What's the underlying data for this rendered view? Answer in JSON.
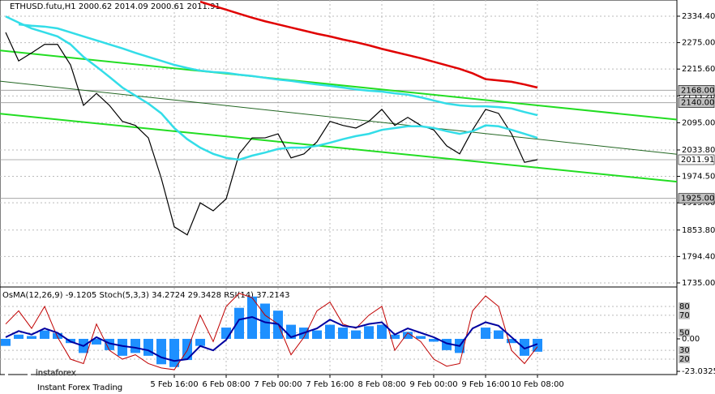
{
  "chart_data": {
    "type": "line",
    "title": "ETHUSD.futu,H1  2000.62 2014.09 2000.61 2011.91",
    "categories": [
      null,
      null,
      null,
      null,
      null,
      null,
      null,
      null,
      null,
      null,
      null,
      null,
      null,
      "5 Feb 16:00",
      null,
      null,
      null,
      "6 Feb 08:00",
      null,
      null,
      null,
      "7 Feb 00:00",
      null,
      null,
      null,
      "7 Feb 16:00",
      null,
      null,
      null,
      "8 Feb 08:00",
      null,
      null,
      null,
      "9 Feb 00:00",
      null,
      null,
      null,
      "9 Feb 16:00",
      null,
      null,
      null,
      "10 Feb 08:00"
    ],
    "ylim": [
      1729.5,
      2370.8
    ],
    "yticks": [
      {
        "value": 2334.4,
        "label": "2334.40"
      },
      {
        "value": 2275,
        "label": "2275.00"
      },
      {
        "value": 2215.6,
        "label": "2215.60"
      },
      {
        "value": 2155.2,
        "label": "2155.20"
      },
      {
        "value": 2095,
        "label": "2095.00"
      },
      {
        "value": 2033.8,
        "label": "2033.80"
      },
      {
        "value": 1974.5,
        "label": "1974.50"
      },
      {
        "value": 1915,
        "label": "1915.00"
      },
      {
        "value": 1853.8,
        "label": "1853.80"
      },
      {
        "value": 1794.4,
        "label": "1794.40"
      },
      {
        "value": 1735,
        "label": "1735.00"
      }
    ],
    "grid": true,
    "series": [
      {
        "color": "#000000",
        "values": [
          2298,
          2234,
          2252,
          2271,
          2271,
          2225,
          2134,
          2161,
          2134,
          2098,
          2089,
          2061,
          1970,
          1861,
          1843,
          1915,
          1897,
          1924,
          2025,
          2061,
          2061,
          2070,
          2016,
          2025,
          2052,
          2098,
          2089,
          2083,
          2098,
          2125,
          2089,
          2107,
          2089,
          2079,
          2043,
          2025,
          2079,
          2125,
          2116,
          2070,
          2006,
          2011.91
        ]
      },
      {
        "color": "#e00000",
        "values": [
          null,
          null,
          null,
          null,
          null,
          null,
          null,
          null,
          null,
          null,
          null,
          null,
          null,
          null,
          null,
          2367,
          2358,
          2349,
          2340,
          2331,
          2323,
          2316,
          2309,
          2302,
          2295,
          2289,
          2282,
          2276,
          2269,
          2261,
          2254,
          2247,
          2240,
          2232,
          2224,
          2216,
          2206,
          2193,
          2190,
          2187,
          2181,
          2174
        ]
      },
      {
        "color": "#33dde8",
        "values": [
          null,
          2316,
          2313,
          2311,
          2307,
          2298,
          2289,
          2280,
          2271,
          2262,
          2252,
          2243,
          2234,
          2225,
          2218,
          2212,
          2209,
          2207,
          2203,
          2200,
          2196,
          2192,
          2189,
          2185,
          2181,
          2178,
          2174,
          2170,
          2167,
          2165,
          2161,
          2158,
          2152,
          2145,
          2138,
          2134,
          2132,
          2132,
          2130,
          2127,
          2119,
          2112
        ]
      },
      {
        "color": "#33dde8",
        "values": [
          2334,
          2320,
          2307,
          2298,
          2289,
          2271,
          2243,
          2221,
          2198,
          2174,
          2156,
          2138,
          2116,
          2083,
          2058,
          2039,
          2025,
          2016,
          2012,
          2021,
          2028,
          2036,
          2039,
          2039,
          2043,
          2050,
          2058,
          2065,
          2070,
          2079,
          2083,
          2087,
          2087,
          2083,
          2076,
          2070,
          2076,
          2089,
          2087,
          2079,
          2070,
          2061
        ]
      }
    ],
    "trendlines": [
      {
        "color": "#22dd22",
        "values": [
          2256,
          2134
        ]
      },
      {
        "color": "#226622",
        "values": [
          2187,
          2058
        ]
      },
      {
        "color": "#22dd22",
        "values": [
          2114,
          1994
        ]
      }
    ],
    "levels": [
      {
        "value": 2168,
        "label": "2168.00",
        "color": "#c0c0c0"
      },
      {
        "value": 2140,
        "label": "2140.00",
        "color": "#c0c0c0"
      },
      {
        "value": 2011.91,
        "label": "2011.91",
        "color": "#ffffff"
      },
      {
        "value": 1925,
        "label": "1925.00",
        "color": "#c0c0c0"
      }
    ],
    "indicator": {
      "title": "OsMA(12,26,9) -9.1205  Stoch(5,3,3) 34.2724 29.3428  RSI(14) 37.2143",
      "ylim": [
        2.5,
        101.2
      ],
      "yticks": [
        80,
        70,
        50,
        30,
        20
      ],
      "y2lim": [
        -25.3,
        36.2
      ],
      "y2ticks": [
        {
          "value": 0,
          "label": "0.00"
        },
        -23.0325
      ],
      "series": [
        {
          "type": "histogram",
          "axis": "y2",
          "color": "#1e90ff",
          "values": [
            -5,
            3,
            2,
            6,
            4,
            -3,
            -10,
            -4,
            -8,
            -12,
            -10,
            -12,
            -18,
            -20,
            -15,
            -5,
            0,
            8,
            22,
            30,
            25,
            20,
            10,
            8,
            6,
            10,
            8,
            6,
            9,
            10,
            3,
            5,
            2,
            -2,
            -8,
            -10,
            0,
            8,
            6,
            -3,
            -12,
            -9.1205
          ]
        },
        {
          "type": "line",
          "color": "#c00000",
          "values": [
            60,
            75,
            55,
            80,
            45,
            20,
            15,
            60,
            30,
            20,
            25,
            15,
            10,
            8,
            30,
            70,
            40,
            80,
            95,
            90,
            70,
            60,
            25,
            45,
            75,
            85,
            60,
            55,
            70,
            80,
            30,
            50,
            40,
            20,
            12,
            15,
            75,
            92,
            80,
            30,
            15,
            34.2724
          ]
        },
        {
          "type": "line",
          "color": "#0000a0",
          "values": [
            45,
            52,
            48,
            55,
            50,
            40,
            35,
            45,
            38,
            35,
            33,
            30,
            22,
            18,
            20,
            35,
            30,
            42,
            65,
            68,
            62,
            60,
            45,
            50,
            55,
            65,
            58,
            56,
            60,
            62,
            48,
            55,
            50,
            45,
            38,
            35,
            55,
            62,
            58,
            45,
            32,
            37.2143
          ]
        }
      ]
    }
  },
  "watermark": {
    "brand": "instaforex",
    "tagline": "Instant Forex Trading"
  }
}
